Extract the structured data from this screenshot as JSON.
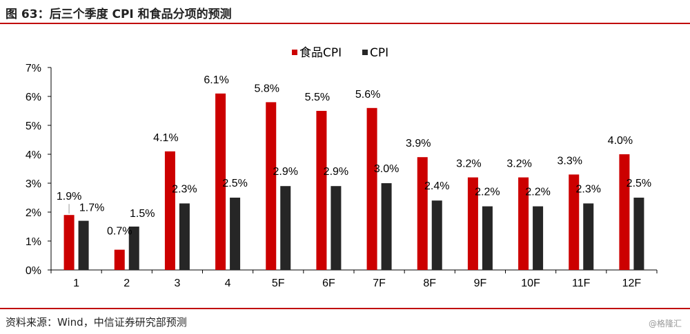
{
  "figure": {
    "title": "图 63：后三个季度 CPI 和食品分项的预测",
    "source": "资料来源：Wind，中信证券研究部预测",
    "watermark": "@格隆汇"
  },
  "colors": {
    "food": "#cc0000",
    "cpi": "#262626",
    "rule": "#c00000"
  },
  "chart_data": {
    "type": "bar",
    "categories": [
      "1",
      "2",
      "3",
      "4",
      "5F",
      "6F",
      "7F",
      "8F",
      "9F",
      "10F",
      "11F",
      "12F"
    ],
    "series": [
      {
        "name": "食品CPI",
        "values": [
          1.9,
          0.7,
          4.1,
          6.1,
          5.8,
          5.5,
          5.6,
          3.9,
          3.2,
          3.2,
          3.3,
          4.0
        ],
        "labels": [
          "1.9%",
          "0.7%",
          "4.1%",
          "6.1%",
          "5.8%",
          "5.5%",
          "5.6%",
          "3.9%",
          "3.2%",
          "3.2%",
          "3.3%",
          "4.0%"
        ]
      },
      {
        "name": "CPI",
        "values": [
          1.7,
          1.5,
          2.3,
          2.5,
          2.9,
          2.9,
          3.0,
          2.4,
          2.2,
          2.2,
          2.3,
          2.5
        ],
        "labels": [
          "1.7%",
          "1.5%",
          "2.3%",
          "2.5%",
          "2.9%",
          "2.9%",
          "3.0%",
          "2.4%",
          "2.2%",
          "2.2%",
          "2.3%",
          "2.5%"
        ]
      }
    ],
    "yticks": [
      "0%",
      "1%",
      "2%",
      "3%",
      "4%",
      "5%",
      "6%",
      "7%"
    ],
    "ylim": [
      0,
      7
    ],
    "legend_position": "top-center",
    "grid": false
  }
}
